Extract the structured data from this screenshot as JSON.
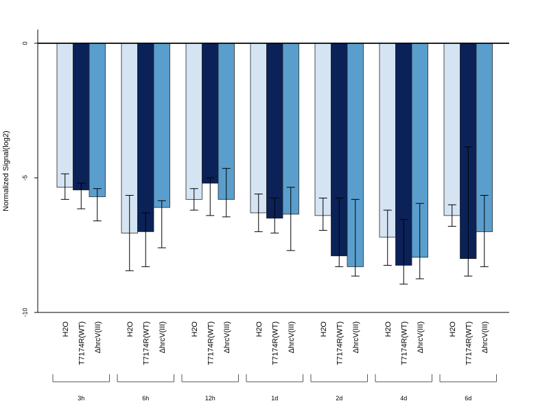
{
  "chart_data": {
    "type": "bar",
    "title": "",
    "xlabel": "",
    "ylabel": "Normalized Signal(log2)",
    "ylim": [
      -10,
      0.5
    ],
    "yticks": [
      0,
      -5,
      -10
    ],
    "groups": [
      "3h",
      "6h",
      "12h",
      "1d",
      "2d",
      "4d",
      "6d"
    ],
    "series": [
      {
        "name": "H2O",
        "color": "#d5e4f3",
        "values": [
          -5.35,
          -7.05,
          -5.8,
          -6.3,
          -6.4,
          -7.2,
          -6.4
        ],
        "err_low": [
          -5.8,
          -8.45,
          -6.2,
          -7.0,
          -6.95,
          -8.25,
          -6.8
        ],
        "err_high": [
          -4.85,
          -5.65,
          -5.4,
          -5.6,
          -5.75,
          -6.2,
          -6.0
        ]
      },
      {
        "name": "T7174R(WT)",
        "color": "#0b2258",
        "values": [
          -5.45,
          -7.0,
          -5.2,
          -6.5,
          -7.9,
          -8.25,
          -8.0
        ],
        "err_low": [
          -6.15,
          -8.3,
          -6.4,
          -7.05,
          -8.3,
          -8.95,
          -8.65
        ],
        "err_high": [
          -5.2,
          -6.3,
          -5.0,
          -5.75,
          -5.75,
          -6.55,
          -3.85
        ]
      },
      {
        "name": "ΔhrcV(III)",
        "color": "#5a9ecd",
        "values": [
          -5.7,
          -6.1,
          -5.8,
          -6.35,
          -8.3,
          -7.95,
          -7.0
        ],
        "err_low": [
          -6.6,
          -7.6,
          -6.45,
          -7.7,
          -8.65,
          -8.75,
          -8.3
        ],
        "err_high": [
          -5.4,
          -5.85,
          -4.65,
          -5.35,
          -5.8,
          -5.95,
          -5.65
        ]
      }
    ],
    "grid": false,
    "legend": "none"
  }
}
